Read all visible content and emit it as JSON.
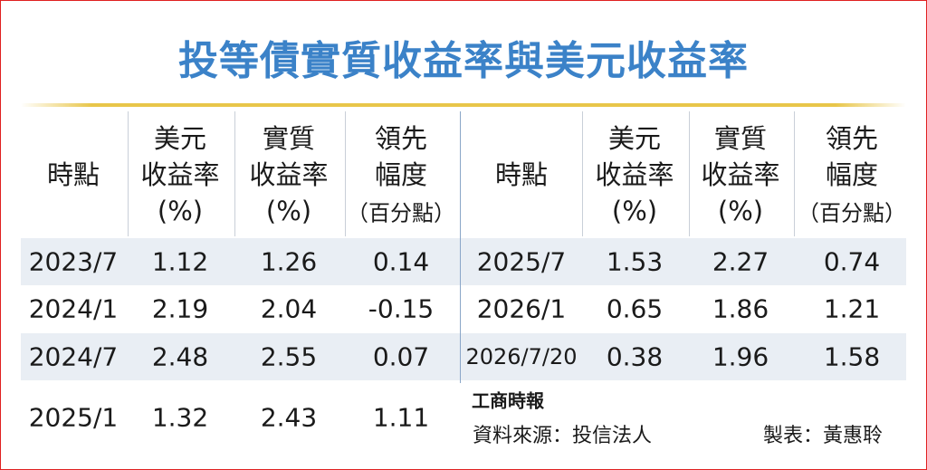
{
  "title": "投等債實質收益率與美元收益率",
  "left_table": {
    "headers": [
      [
        "時點"
      ],
      [
        "美元",
        "收益率",
        "(%)"
      ],
      [
        "實質",
        "收益率",
        "(%)"
      ],
      [
        "領先",
        "幅度",
        "（百分點）"
      ]
    ],
    "rows": [
      [
        "2023/7",
        "1.12",
        "1.26",
        "0.14"
      ],
      [
        "2024/1",
        "2.19",
        "2.04",
        "-0.15"
      ],
      [
        "2024/7",
        "2.48",
        "2.55",
        "0.07"
      ],
      [
        "2025/1",
        "1.32",
        "2.43",
        "1.11"
      ]
    ]
  },
  "right_table": {
    "headers": [
      [
        "時點"
      ],
      [
        "美元",
        "收益率",
        "(%)"
      ],
      [
        "實質",
        "收益率",
        "(%)"
      ],
      [
        "領先",
        "幅度",
        "（百分點）"
      ]
    ],
    "rows": [
      [
        "2025/7",
        "1.53",
        "2.27",
        "0.74"
      ],
      [
        "2026/1",
        "0.65",
        "1.86",
        "1.21"
      ],
      [
        "2026/7/20",
        "0.38",
        "1.96",
        "1.58"
      ]
    ]
  },
  "footer": {
    "logo": "工商時報",
    "source": "資料來源：投信法人",
    "author": "製表：黃惠聆"
  }
}
